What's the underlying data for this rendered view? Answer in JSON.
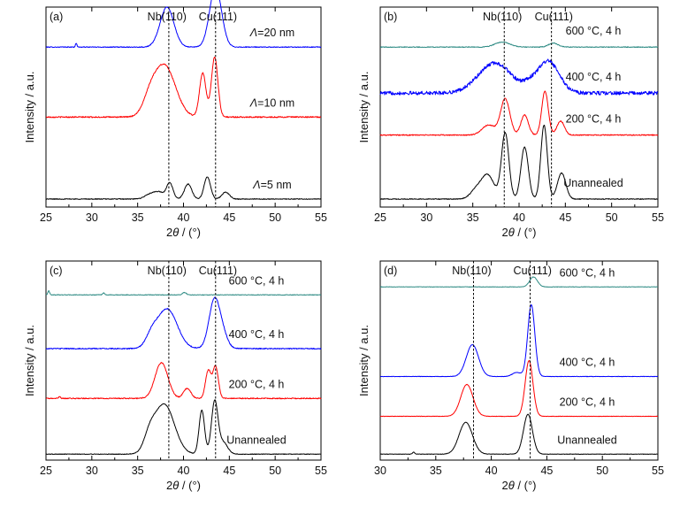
{
  "chart_data": [
    {
      "panel_label": "(a)",
      "type": "line",
      "xlabel": "2θ / (°)",
      "ylabel": "Intensity / a.u.",
      "xlim": [
        25,
        55
      ],
      "xticks": [
        25,
        30,
        35,
        40,
        45,
        50,
        55
      ],
      "grid": false,
      "reference_lines": [
        {
          "label": "Nb(110)",
          "x": 38.4
        },
        {
          "label": "Cu(111)",
          "x": 43.5
        }
      ],
      "series": [
        {
          "name": "Λ=20 nm",
          "color": "#0000ff",
          "baseline": 0.8,
          "noise": 0.004,
          "peaks": [
            [
              38.2,
              0.2,
              0.75
            ],
            [
              43.5,
              0.3,
              0.65
            ],
            [
              28.3,
              0.02,
              0.08
            ]
          ]
        },
        {
          "name": "Λ=10 nm",
          "color": "#ff0000",
          "baseline": 0.45,
          "noise": 0.006,
          "peaks": [
            [
              37.9,
              0.26,
              1.2
            ],
            [
              42.1,
              0.22,
              0.35
            ],
            [
              43.4,
              0.3,
              0.35
            ],
            [
              36.3,
              0.06,
              0.7
            ]
          ]
        },
        {
          "name": "Λ=5 nm",
          "color": "#000000",
          "baseline": 0.04,
          "noise": 0.004,
          "peaks": [
            [
              36.4,
              0.025,
              0.6
            ],
            [
              37.4,
              0.03,
              0.5
            ],
            [
              38.5,
              0.08,
              0.35
            ],
            [
              40.5,
              0.075,
              0.4
            ],
            [
              42.6,
              0.11,
              0.35
            ],
            [
              44.6,
              0.035,
              0.4
            ]
          ]
        }
      ]
    },
    {
      "panel_label": "(b)",
      "type": "line",
      "xlabel": "2θ / (°)",
      "ylabel": "Intensity / a.u.",
      "xlim": [
        25,
        55
      ],
      "xticks": [
        25,
        30,
        35,
        40,
        45,
        50,
        55
      ],
      "grid": false,
      "reference_lines": [
        {
          "label": "Nb(110)",
          "x": 38.4
        },
        {
          "label": "Cu(111)",
          "x": 43.5
        }
      ],
      "series": [
        {
          "name": "600 °C, 4 h",
          "color": "#2e8b84",
          "baseline": 0.8,
          "noise": 0.004,
          "peaks": [
            [
              38.2,
              0.025,
              0.8
            ],
            [
              43.7,
              0.02,
              0.5
            ]
          ]
        },
        {
          "name": "400 °C, 4 h",
          "color": "#0000ff",
          "baseline": 0.57,
          "noise": 0.018,
          "peaks": [
            [
              37.4,
              0.15,
              1.8
            ],
            [
              43.1,
              0.16,
              1.2
            ],
            [
              41.0,
              0.02,
              0.6
            ]
          ]
        },
        {
          "name": "200 °C, 4 h",
          "color": "#ff0000",
          "baseline": 0.36,
          "noise": 0.005,
          "peaks": [
            [
              38.5,
              0.18,
              0.5
            ],
            [
              40.6,
              0.1,
              0.4
            ],
            [
              42.8,
              0.22,
              0.35
            ],
            [
              44.5,
              0.07,
              0.4
            ],
            [
              36.7,
              0.05,
              0.7
            ]
          ]
        },
        {
          "name": "Unannealed",
          "color": "#000000",
          "baseline": 0.04,
          "noise": 0.004,
          "peaks": [
            [
              38.5,
              0.33,
              0.4
            ],
            [
              40.6,
              0.26,
              0.4
            ],
            [
              42.7,
              0.37,
              0.35
            ],
            [
              44.6,
              0.13,
              0.45
            ],
            [
              36.6,
              0.12,
              0.7
            ],
            [
              35.3,
              0.04,
              0.6
            ]
          ]
        }
      ]
    },
    {
      "panel_label": "(c)",
      "type": "line",
      "xlabel": "2θ / (°)",
      "ylabel": "Intensity / a.u.",
      "xlim": [
        25,
        55
      ],
      "xticks": [
        25,
        30,
        35,
        40,
        45,
        50,
        55
      ],
      "grid": false,
      "reference_lines": [
        {
          "label": "Nb(110)",
          "x": 38.4
        },
        {
          "label": "Cu(111)",
          "x": 43.5
        }
      ],
      "series": [
        {
          "name": "600 °C, 4 h",
          "color": "#2e8b84",
          "baseline": 0.83,
          "noise": 0.003,
          "peaks": [
            [
              25.3,
              0.02,
              0.1
            ],
            [
              31.3,
              0.01,
              0.1
            ],
            [
              40.1,
              0.012,
              0.2
            ]
          ]
        },
        {
          "name": "400 °C, 4 h",
          "color": "#0000ff",
          "baseline": 0.56,
          "noise": 0.005,
          "peaks": [
            [
              38.2,
              0.2,
              1.1
            ],
            [
              43.4,
              0.25,
              0.6
            ],
            [
              36.5,
              0.05,
              0.6
            ],
            [
              44.4,
              0.05,
              0.5
            ]
          ]
        },
        {
          "name": "200 °C, 4 h",
          "color": "#ff0000",
          "baseline": 0.31,
          "noise": 0.005,
          "peaks": [
            [
              37.6,
              0.18,
              0.7
            ],
            [
              40.4,
              0.05,
              0.4
            ],
            [
              42.7,
              0.14,
              0.3
            ],
            [
              43.5,
              0.16,
              0.3
            ],
            [
              26.5,
              0.01,
              0.1
            ]
          ]
        },
        {
          "name": "Unannealed",
          "color": "#000000",
          "baseline": 0.03,
          "noise": 0.003,
          "peaks": [
            [
              37.9,
              0.25,
              1.1
            ],
            [
              42.0,
              0.22,
              0.3
            ],
            [
              43.4,
              0.26,
              0.35
            ],
            [
              36.3,
              0.07,
              0.6
            ],
            [
              44.3,
              0.06,
              0.5
            ]
          ]
        }
      ]
    },
    {
      "panel_label": "(d)",
      "type": "line",
      "xlabel": "2θ / (°)",
      "ylabel": "Intensity / a.u.",
      "xlim": [
        30,
        55
      ],
      "xticks": [
        30,
        35,
        40,
        45,
        50,
        55
      ],
      "grid": false,
      "reference_lines": [
        {
          "label": "Nb(110)",
          "x": 38.4
        },
        {
          "label": "Cu(111)",
          "x": 43.5
        }
      ],
      "series": [
        {
          "name": "600 °C, 4 h",
          "color": "#2e8b84",
          "baseline": 0.87,
          "noise": 0.002,
          "peaks": [
            [
              43.8,
              0.05,
              0.35
            ]
          ]
        },
        {
          "name": "400 °C, 4 h",
          "color": "#0000ff",
          "baseline": 0.42,
          "noise": 0.002,
          "peaks": [
            [
              38.3,
              0.16,
              0.55
            ],
            [
              43.6,
              0.36,
              0.32
            ],
            [
              42.3,
              0.02,
              0.4
            ]
          ]
        },
        {
          "name": "200 °C, 4 h",
          "color": "#ff0000",
          "baseline": 0.22,
          "noise": 0.002,
          "peaks": [
            [
              37.8,
              0.16,
              0.55
            ],
            [
              43.4,
              0.28,
              0.35
            ]
          ]
        },
        {
          "name": "Unannealed",
          "color": "#000000",
          "baseline": 0.03,
          "noise": 0.002,
          "peaks": [
            [
              37.7,
              0.16,
              0.6
            ],
            [
              43.3,
              0.2,
              0.4
            ],
            [
              33.0,
              0.01,
              0.1
            ]
          ]
        }
      ]
    }
  ]
}
